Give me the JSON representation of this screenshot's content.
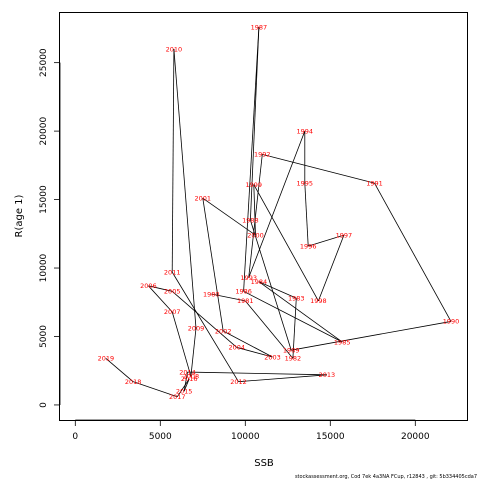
{
  "chart_data": {
    "type": "scatter",
    "mode": "connected-labeled",
    "xlabel": "SSB",
    "ylabel": "R(age 1)",
    "xlim": [
      -900,
      23100
    ],
    "ylim": [
      -1100,
      28700
    ],
    "xticks": [
      0,
      5000,
      10000,
      15000,
      20000
    ],
    "yticks": [
      0,
      5000,
      10000,
      15000,
      20000,
      25000
    ],
    "grid": false,
    "legend": "none",
    "line_color": "#000000",
    "label_color": "#ff0000",
    "points": [
      {
        "year": "1980",
        "x": 8000,
        "y": 8100
      },
      {
        "year": "1981",
        "x": 10000,
        "y": 7600
      },
      {
        "year": "1982",
        "x": 12800,
        "y": 3400
      },
      {
        "year": "1983",
        "x": 13000,
        "y": 7800
      },
      {
        "year": "1984",
        "x": 10800,
        "y": 9000
      },
      {
        "year": "1985",
        "x": 15700,
        "y": 4600
      },
      {
        "year": "1986",
        "x": 9900,
        "y": 8300
      },
      {
        "year": "1987",
        "x": 10800,
        "y": 27600
      },
      {
        "year": "1988",
        "x": 10300,
        "y": 13500
      },
      {
        "year": "1989",
        "x": 12700,
        "y": 4000
      },
      {
        "year": "1990",
        "x": 22100,
        "y": 6100
      },
      {
        "year": "1991",
        "x": 17600,
        "y": 16200
      },
      {
        "year": "1992",
        "x": 11000,
        "y": 18300
      },
      {
        "year": "1993",
        "x": 10200,
        "y": 9300
      },
      {
        "year": "1994",
        "x": 13500,
        "y": 20000
      },
      {
        "year": "1995",
        "x": 13500,
        "y": 16200
      },
      {
        "year": "1996",
        "x": 13700,
        "y": 11600
      },
      {
        "year": "1997",
        "x": 15800,
        "y": 12400
      },
      {
        "year": "1998",
        "x": 14300,
        "y": 7600
      },
      {
        "year": "1999",
        "x": 10500,
        "y": 16100
      },
      {
        "year": "2000",
        "x": 10600,
        "y": 12400
      },
      {
        "year": "2001",
        "x": 7500,
        "y": 15100
      },
      {
        "year": "2002",
        "x": 8700,
        "y": 5400
      },
      {
        "year": "2003",
        "x": 11600,
        "y": 3500
      },
      {
        "year": "2004",
        "x": 9500,
        "y": 4200
      },
      {
        "year": "2005",
        "x": 5700,
        "y": 8300
      },
      {
        "year": "2006",
        "x": 4300,
        "y": 8700
      },
      {
        "year": "2007",
        "x": 5700,
        "y": 6800
      },
      {
        "year": "2008",
        "x": 6800,
        "y": 2100
      },
      {
        "year": "2009",
        "x": 7100,
        "y": 5600
      },
      {
        "year": "2010",
        "x": 5800,
        "y": 26000
      },
      {
        "year": "2011",
        "x": 5700,
        "y": 9700
      },
      {
        "year": "2012",
        "x": 9600,
        "y": 1700
      },
      {
        "year": "2013",
        "x": 14800,
        "y": 2200
      },
      {
        "year": "2014",
        "x": 6600,
        "y": 2400
      },
      {
        "year": "2015",
        "x": 6400,
        "y": 1000
      },
      {
        "year": "2016",
        "x": 6700,
        "y": 1900
      },
      {
        "year": "2017",
        "x": 6000,
        "y": 600
      },
      {
        "year": "2018",
        "x": 3400,
        "y": 1700
      },
      {
        "year": "2019",
        "x": 1800,
        "y": 3400
      }
    ]
  },
  "footnote": "stockassessment.org, Cod 7ek 4a3NA FCup, r12843 , git: 5b334405cda7"
}
